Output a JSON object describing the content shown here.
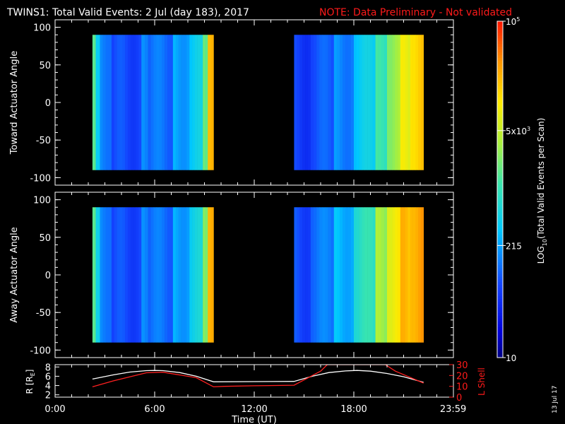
{
  "header": {
    "title": "TWINS1: Total Valid Events:  2 Jul (day 183), 2017",
    "note": "NOTE: Data Preliminary - Not validated"
  },
  "colors": {
    "note": "#ff1a1a",
    "orbit_r": "#ffffff",
    "orbit_lshell": "#ff2020",
    "background": "#000000"
  },
  "colorbar": {
    "label": "LOG10(Total Valid Events per Scan)",
    "label_parts": [
      "LOG",
      "10",
      "(Total Valid Events per Scan)"
    ],
    "ticks": [
      {
        "label": "10",
        "value": 10
      },
      {
        "label": "215",
        "value": 215
      },
      {
        "label": "5x10",
        "exp": "3",
        "value": 5000
      },
      {
        "label": "10",
        "exp": "5",
        "value": 100000
      }
    ],
    "range": [
      10,
      100000
    ],
    "scale": "log",
    "colormap": "rainbow (blue to red)"
  },
  "footer": {
    "date_stamp": "13 Jul 17"
  },
  "chart_data": [
    {
      "type": "heatmap",
      "ylabel": "Toward Actuator Angle",
      "ylim": [
        -110,
        110
      ],
      "yticks": [
        100,
        50,
        0,
        -50,
        -100
      ],
      "xlim": [
        0,
        24
      ],
      "coverage": [
        [
          2.25,
          9.55
        ],
        [
          14.4,
          22.2
        ]
      ],
      "angle_range": [
        -90,
        90
      ],
      "description_of_values": "log10 counts; mostly blue (~100) rising to orange (~5x10^3) at end of each interval",
      "column_intensity": [
        {
          "start": 2.25,
          "end": 2.45,
          "value": 0.55
        },
        {
          "start": 2.45,
          "end": 2.7,
          "value": 0.4
        },
        {
          "start": 2.7,
          "end": 3.4,
          "value": 0.3
        },
        {
          "start": 3.4,
          "end": 5.2,
          "value": 0.22
        },
        {
          "start": 5.2,
          "end": 5.6,
          "value": 0.3
        },
        {
          "start": 5.6,
          "end": 7.1,
          "value": 0.27
        },
        {
          "start": 7.1,
          "end": 8.1,
          "value": 0.34
        },
        {
          "start": 8.1,
          "end": 8.9,
          "value": 0.4
        },
        {
          "start": 8.9,
          "end": 9.2,
          "value": 0.55
        },
        {
          "start": 9.2,
          "end": 9.55,
          "value": 0.85
        },
        {
          "start": 14.4,
          "end": 15.4,
          "value": 0.2
        },
        {
          "start": 15.4,
          "end": 16.8,
          "value": 0.24
        },
        {
          "start": 16.8,
          "end": 18.0,
          "value": 0.3
        },
        {
          "start": 18.0,
          "end": 19.3,
          "value": 0.4
        },
        {
          "start": 19.3,
          "end": 20.0,
          "value": 0.5
        },
        {
          "start": 20.0,
          "end": 20.8,
          "value": 0.62
        },
        {
          "start": 20.8,
          "end": 21.4,
          "value": 0.72
        },
        {
          "start": 21.4,
          "end": 22.2,
          "value": 0.8
        }
      ]
    },
    {
      "type": "heatmap",
      "ylabel": "Away Actuator Angle",
      "ylim": [
        -110,
        110
      ],
      "yticks": [
        100,
        50,
        0,
        -50,
        -100
      ],
      "xlim": [
        0,
        24
      ],
      "coverage": [
        [
          2.25,
          9.55
        ],
        [
          14.4,
          22.2
        ]
      ],
      "angle_range": [
        -90,
        90
      ],
      "description_of_values": "log10 counts; mostly blue rising to orange at end of each interval",
      "column_intensity": [
        {
          "start": 2.25,
          "end": 2.45,
          "value": 0.55
        },
        {
          "start": 2.45,
          "end": 2.7,
          "value": 0.42
        },
        {
          "start": 2.7,
          "end": 3.4,
          "value": 0.3
        },
        {
          "start": 3.4,
          "end": 5.2,
          "value": 0.22
        },
        {
          "start": 5.2,
          "end": 5.6,
          "value": 0.3
        },
        {
          "start": 5.6,
          "end": 7.1,
          "value": 0.27
        },
        {
          "start": 7.1,
          "end": 8.1,
          "value": 0.34
        },
        {
          "start": 8.1,
          "end": 8.9,
          "value": 0.42
        },
        {
          "start": 8.9,
          "end": 9.2,
          "value": 0.58
        },
        {
          "start": 9.2,
          "end": 9.55,
          "value": 0.86
        },
        {
          "start": 14.4,
          "end": 15.4,
          "value": 0.22
        },
        {
          "start": 15.4,
          "end": 16.8,
          "value": 0.28
        },
        {
          "start": 16.8,
          "end": 18.0,
          "value": 0.36
        },
        {
          "start": 18.0,
          "end": 19.3,
          "value": 0.48
        },
        {
          "start": 19.3,
          "end": 20.0,
          "value": 0.62
        },
        {
          "start": 20.0,
          "end": 20.8,
          "value": 0.74
        },
        {
          "start": 20.8,
          "end": 21.4,
          "value": 0.82
        },
        {
          "start": 21.4,
          "end": 22.2,
          "value": 0.86
        }
      ]
    },
    {
      "type": "line",
      "xlabel": "Time (UT)",
      "xlim": [
        0,
        24
      ],
      "xticks": [
        {
          "value": 0,
          "label": "0:00"
        },
        {
          "value": 6,
          "label": "6:00"
        },
        {
          "value": 12,
          "label": "12:00"
        },
        {
          "value": 18,
          "label": "18:00"
        },
        {
          "value": 23.983,
          "label": "23:59"
        }
      ],
      "ylabel_left": "R [RE]",
      "ylabel_left_parts": [
        "R [R",
        "E",
        "]"
      ],
      "ylim_left": [
        1.5,
        8.5
      ],
      "yticks_left": [
        2,
        4,
        6,
        8
      ],
      "ylabel_right": "L Shell",
      "ylim_right": [
        0,
        30
      ],
      "yticks_right": [
        0,
        10,
        20,
        30
      ],
      "series": [
        {
          "name": "R",
          "axis": "left",
          "x": [
            2.25,
            3.5,
            4.5,
            5.5,
            6.0,
            6.5,
            7.5,
            8.5,
            9.55,
            12.0,
            14.4,
            15.5,
            16.5,
            17.5,
            18.2,
            19.0,
            20.0,
            21.0,
            22.2
          ],
          "values": [
            5.4,
            6.3,
            6.9,
            7.2,
            7.25,
            7.2,
            6.8,
            6.0,
            4.8,
            4.85,
            4.9,
            6.0,
            6.8,
            7.15,
            7.25,
            7.1,
            6.6,
            5.9,
            4.7
          ]
        },
        {
          "name": "L Shell",
          "axis": "right",
          "x": [
            2.25,
            3.5,
            5.5,
            6.5,
            8.5,
            9.55,
            10.2,
            12.0,
            14.4,
            16.0,
            16.4,
            19.9,
            20.5,
            22.2
          ],
          "values": [
            9.5,
            15,
            22.5,
            23,
            18,
            9.5,
            10,
            10.5,
            11,
            24,
            30,
            30,
            24,
            13
          ]
        }
      ]
    }
  ]
}
